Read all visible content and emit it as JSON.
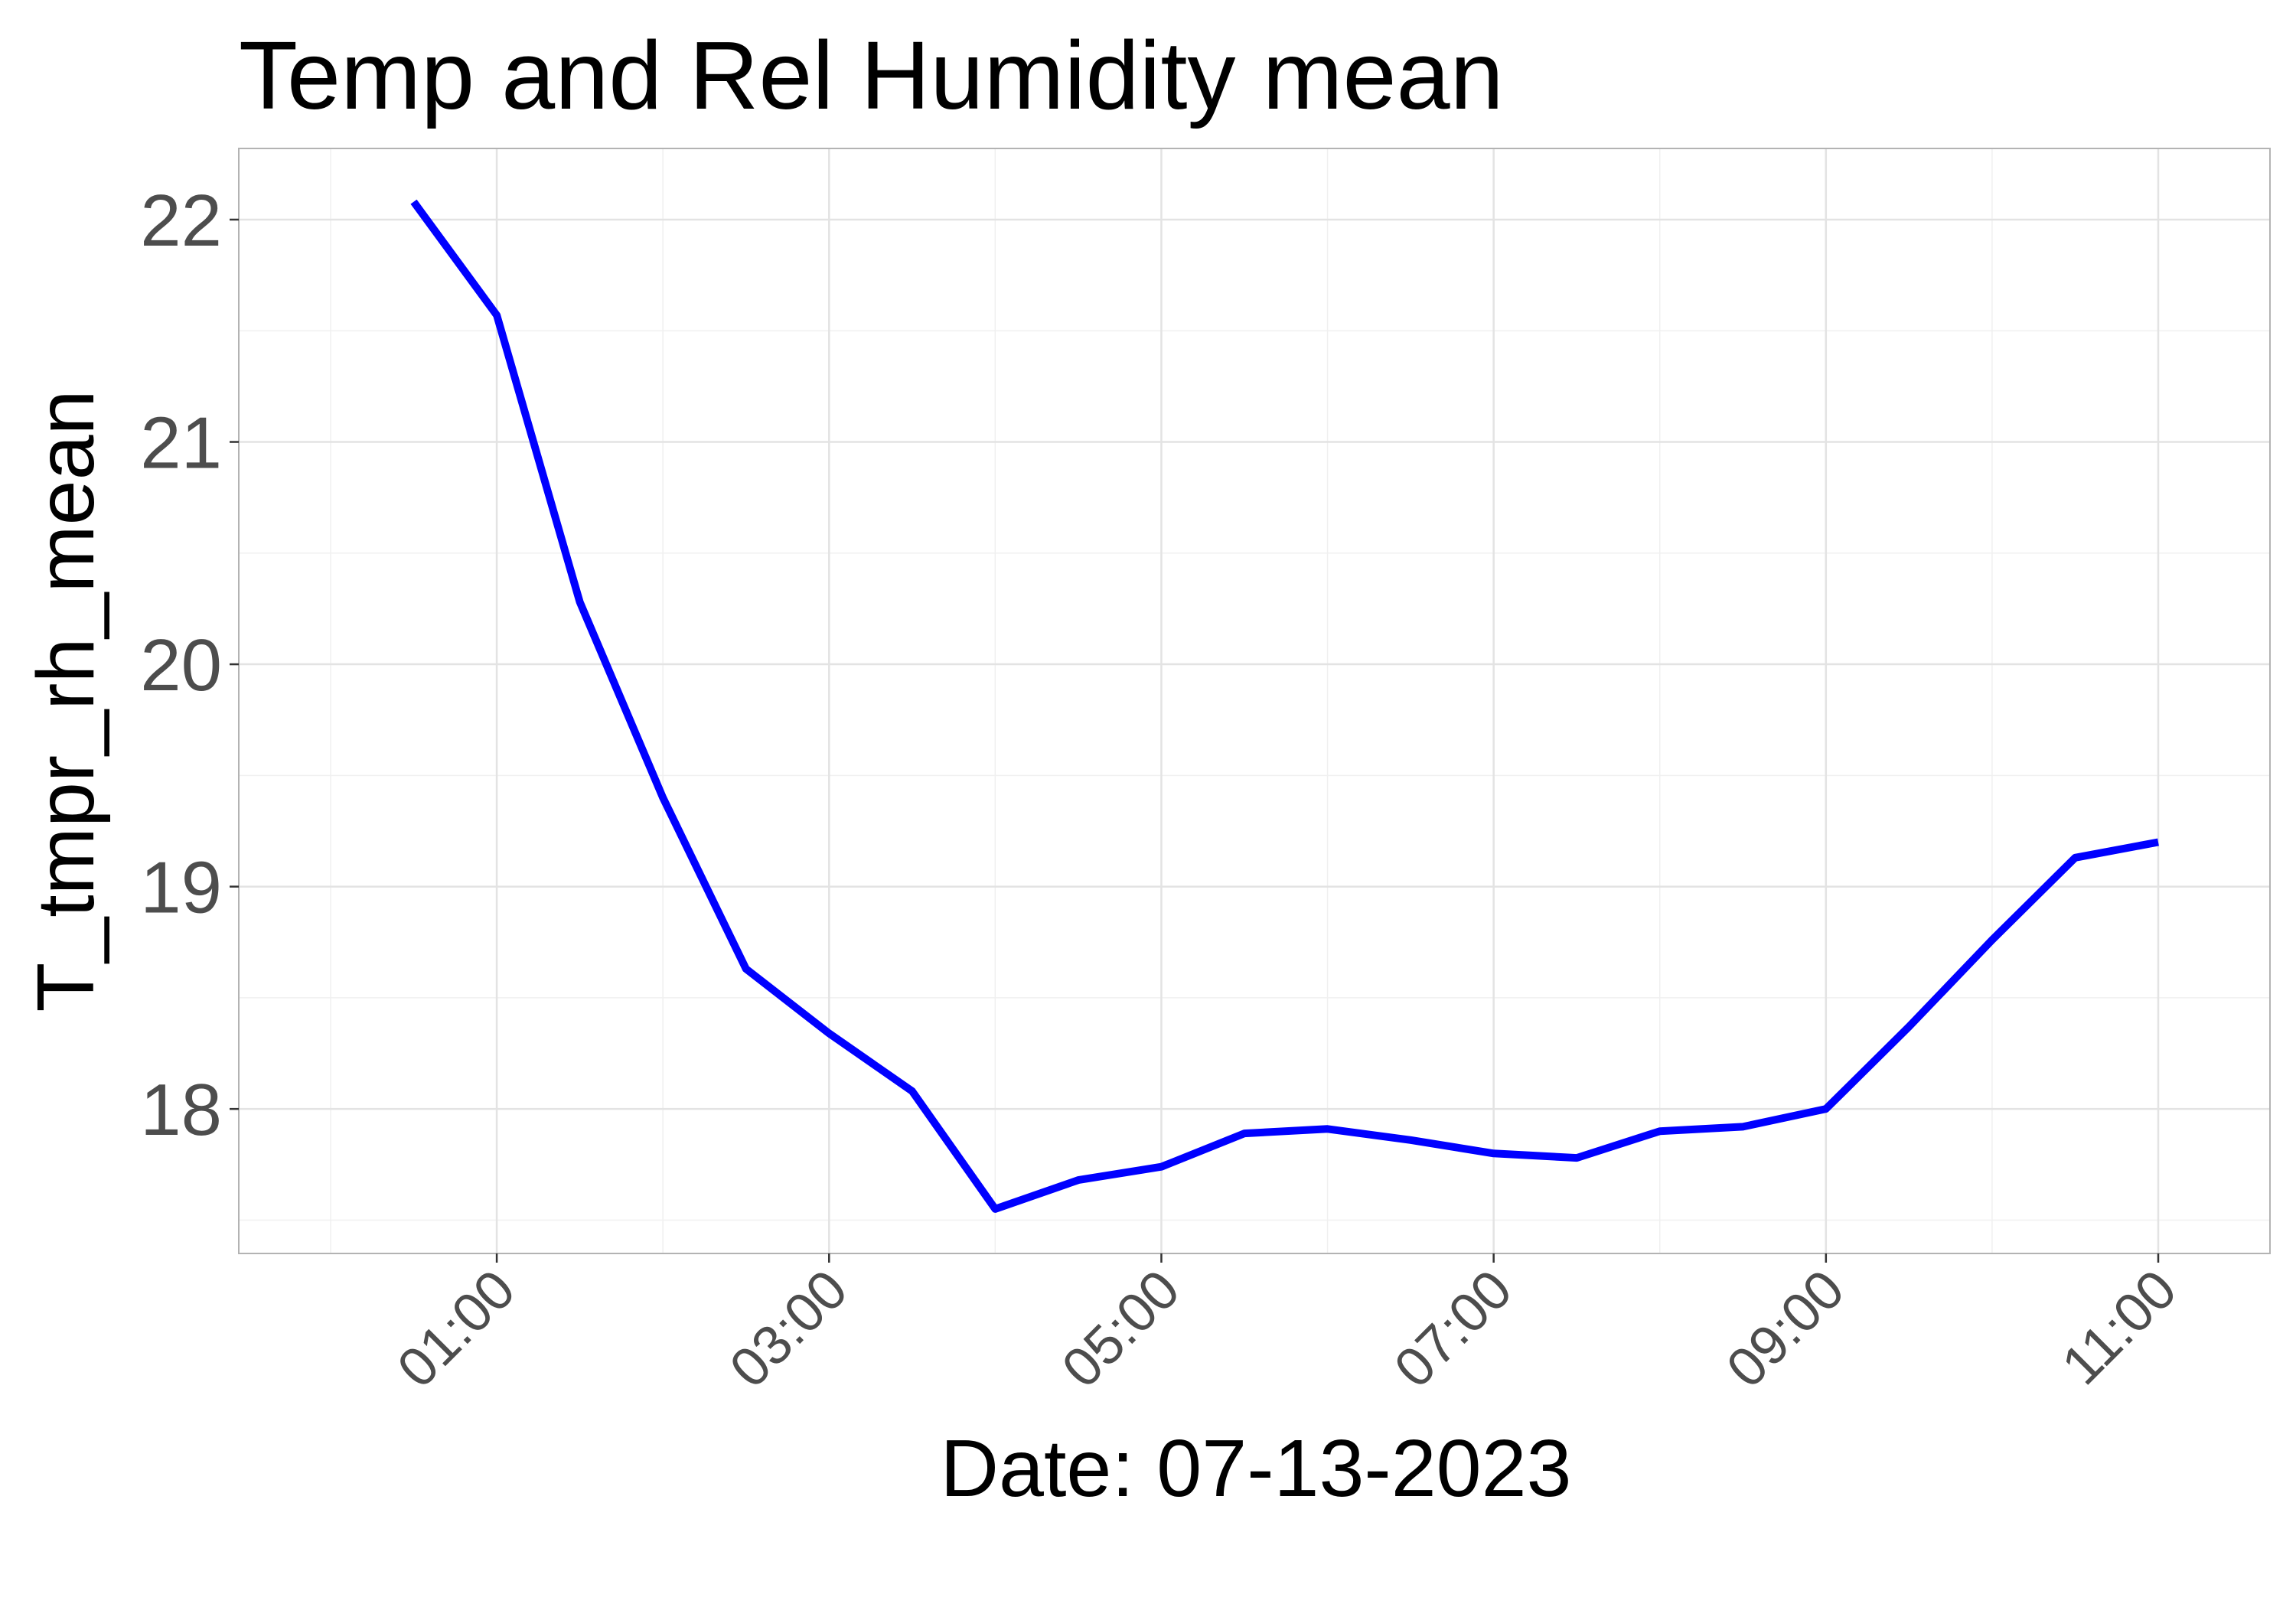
{
  "chart_data": {
    "type": "line",
    "title": "Temp and Rel Humidity mean",
    "xlabel": "Date: 07-13-2023",
    "ylabel": "T_tmpr_rh_mean",
    "x_tick_labels": [
      "01:00",
      "03:00",
      "05:00",
      "07:00",
      "09:00",
      "11:00"
    ],
    "y_tick_labels": [
      "18",
      "19",
      "20",
      "21",
      "22"
    ],
    "xlim": [
      "00:00",
      "11:00"
    ],
    "ylim": [
      17.35,
      22.32
    ],
    "grid": true,
    "series": [
      {
        "color": "#0000ff",
        "points": [
          {
            "x": "00:30",
            "y": 22.08
          },
          {
            "x": "01:00",
            "y": 21.57
          },
          {
            "x": "01:30",
            "y": 20.28
          },
          {
            "x": "02:00",
            "y": 19.4
          },
          {
            "x": "02:30",
            "y": 18.63
          },
          {
            "x": "03:00",
            "y": 18.34
          },
          {
            "x": "03:30",
            "y": 18.08
          },
          {
            "x": "04:00",
            "y": 17.55
          },
          {
            "x": "04:30",
            "y": 17.68
          },
          {
            "x": "05:00",
            "y": 17.74
          },
          {
            "x": "05:30",
            "y": 17.89
          },
          {
            "x": "06:00",
            "y": 17.91
          },
          {
            "x": "06:30",
            "y": 17.86
          },
          {
            "x": "07:00",
            "y": 17.8
          },
          {
            "x": "07:30",
            "y": 17.78
          },
          {
            "x": "08:00",
            "y": 17.9
          },
          {
            "x": "08:30",
            "y": 17.92
          },
          {
            "x": "09:00",
            "y": 18.0
          },
          {
            "x": "09:30",
            "y": 18.37
          },
          {
            "x": "10:00",
            "y": 18.76
          },
          {
            "x": "10:30",
            "y": 19.13
          },
          {
            "x": "11:00",
            "y": 19.2
          }
        ]
      }
    ]
  }
}
